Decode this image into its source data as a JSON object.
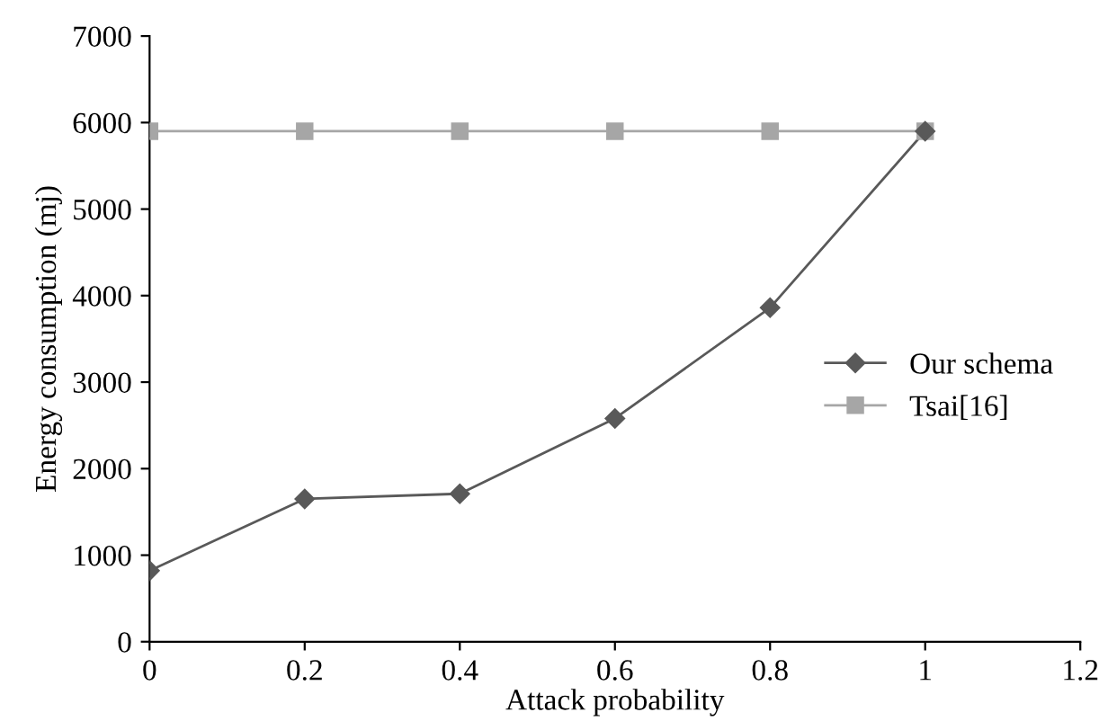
{
  "chart_data": {
    "type": "line",
    "xlabel": "Attack probability",
    "ylabel": "Energy consumption (mj)",
    "x": [
      0,
      0.2,
      0.4,
      0.6,
      0.8,
      1
    ],
    "series": [
      {
        "name": "Our schema",
        "color": "#595959",
        "marker": "diamond",
        "values": [
          820,
          1650,
          1710,
          2580,
          3860,
          5900
        ]
      },
      {
        "name": "Tsai[16]",
        "color": "#a6a6a6",
        "marker": "square",
        "values": [
          5900,
          5900,
          5900,
          5900,
          5900,
          5900
        ]
      }
    ],
    "xlim": [
      0,
      1.2
    ],
    "xticks": [
      0,
      0.2,
      0.4,
      0.6,
      0.8,
      1,
      1.2
    ],
    "ylim": [
      0,
      7000
    ],
    "yticks": [
      0,
      1000,
      2000,
      3000,
      4000,
      5000,
      6000,
      7000
    ],
    "grid": false,
    "legend": "right"
  }
}
